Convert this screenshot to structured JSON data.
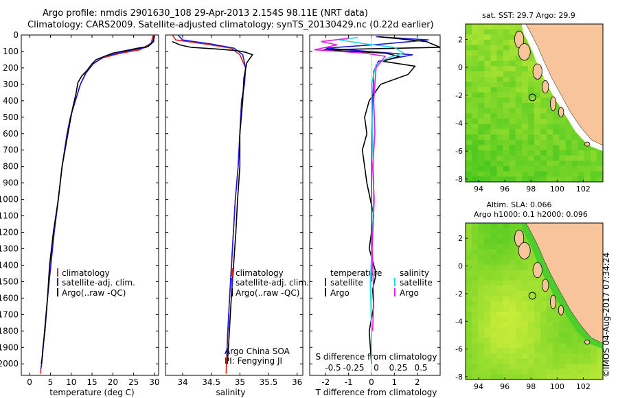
{
  "figure": {
    "title_line1": "Argo profile: nmdis 2901630_108 29-Apr-2013 2.154S 98.11E (NRT data)",
    "title_line2": "Climatology: CARS2009. Satellite-adjusted climatology: synTS_20130429.nc (0.22d earlier)",
    "credit": "©IMOS 04-Aug-2017 07:34:24",
    "colors": {
      "climatology": "#e8201c",
      "satellite": "#1a1adc",
      "argo": "#000000",
      "sat_salinity": "#22d8e8",
      "argo_salinity": "#e020e0",
      "land": "#f7c49b",
      "sea_green": "#39c21a",
      "sea_yellow": "#c8ec3a"
    }
  },
  "chart_data": [
    {
      "id": "temperature",
      "type": "line",
      "xlabel": "temperature (deg C)",
      "ylabel": "",
      "xlim": [
        -2,
        31
      ],
      "ylim": [
        2070,
        0
      ],
      "xticks": [
        0,
        5,
        10,
        15,
        20,
        25,
        30
      ],
      "yticks": [
        0,
        100,
        200,
        300,
        400,
        500,
        600,
        700,
        800,
        900,
        1000,
        1100,
        1200,
        1300,
        1400,
        1500,
        1600,
        1700,
        1800,
        1900,
        2000
      ],
      "legend": [
        "climatology",
        "satellite-adj. clim.",
        "Argo(..raw -QC)"
      ],
      "series": [
        {
          "name": "climatology",
          "color": "#e8201c",
          "x": [
            29.7,
            29.2,
            26.5,
            22,
            17.5,
            15,
            13.5,
            12.2,
            11,
            9.8,
            9,
            7.8,
            6.9,
            5.9,
            5.1,
            4.3,
            3.7,
            3.2,
            2.9,
            2.7,
            2.65
          ],
          "y": [
            0,
            50,
            90,
            110,
            140,
            180,
            230,
            300,
            400,
            500,
            600,
            800,
            1000,
            1200,
            1400,
            1600,
            1800,
            1900,
            2000,
            2030,
            2060
          ]
        },
        {
          "name": "satellite-adj. clim.",
          "color": "#1a1adc",
          "x": [
            29.9,
            29.6,
            28,
            23,
            18,
            15.3,
            13.6,
            12.2,
            11,
            9.8,
            9,
            7.8,
            6.9,
            5.9,
            5.1,
            4.3,
            3.7,
            3.2,
            2.9,
            2.7
          ],
          "y": [
            0,
            40,
            75,
            100,
            130,
            175,
            230,
            300,
            400,
            500,
            600,
            800,
            1000,
            1200,
            1400,
            1600,
            1800,
            1900,
            2000,
            2030
          ]
        },
        {
          "name": "Argo(..raw -QC)",
          "color": "#000000",
          "x": [
            29.9,
            29.8,
            28.5,
            26,
            24,
            20,
            18,
            16,
            15,
            13.8,
            12.5,
            11.6,
            11.2,
            10.3,
            9.2,
            7.8,
            6.9,
            5.7,
            4.8,
            4.3,
            3.6,
            3.1,
            2.8
          ],
          "y": [
            10,
            40,
            70,
            80,
            90,
            110,
            130,
            150,
            175,
            215,
            250,
            290,
            350,
            450,
            600,
            800,
            1000,
            1200,
            1400,
            1600,
            1800,
            1950,
            2000
          ]
        }
      ]
    },
    {
      "id": "salinity",
      "type": "line",
      "xlabel": "salinity",
      "ylabel": "",
      "xlim": [
        33.7,
        36.1
      ],
      "ylim": [
        2070,
        0
      ],
      "xticks": [
        34,
        34.5,
        35,
        35.5,
        36
      ],
      "legend": [
        "climatology",
        "satellite-adj. clim.",
        "Argo(..raw -QC)"
      ],
      "annotation_line1": "Argo China SOA",
      "annotation_line2": "PI: Fengying JI",
      "series": [
        {
          "name": "climatology",
          "color": "#e8201c",
          "x": [
            33.82,
            33.88,
            34.4,
            34.85,
            35.0,
            35.1,
            35.08,
            35.03,
            35.0,
            34.97,
            34.92,
            34.87,
            34.82,
            34.79,
            34.77,
            34.76
          ],
          "y": [
            0,
            30,
            55,
            80,
            120,
            200,
            300,
            400,
            600,
            800,
            1000,
            1300,
            1600,
            1800,
            1950,
            2060
          ]
        },
        {
          "name": "satellite-adj. clim.",
          "color": "#1a1adc",
          "x": [
            33.92,
            34.0,
            34.5,
            34.9,
            35.05,
            35.1,
            35.08,
            35.03,
            35.0,
            34.97,
            34.92,
            34.87,
            34.82,
            34.79,
            34.77
          ],
          "y": [
            0,
            30,
            55,
            80,
            120,
            200,
            300,
            400,
            600,
            800,
            1000,
            1300,
            1600,
            1800,
            1950
          ]
        },
        {
          "name": "Argo(..raw -QC)",
          "color": "#000000",
          "x": [
            33.82,
            33.95,
            34.15,
            34.6,
            34.95,
            35.1,
            35.22,
            35.12,
            35.07,
            35.05,
            35.0,
            35.0,
            34.96,
            34.93,
            34.85,
            34.8,
            34.78
          ],
          "y": [
            40,
            60,
            75,
            85,
            95,
            105,
            120,
            170,
            260,
            400,
            600,
            800,
            1000,
            1200,
            1600,
            1900,
            2000
          ]
        }
      ]
    },
    {
      "id": "differences",
      "type": "line",
      "xlabel": "T difference from climatology",
      "ylabel": "",
      "top_axis_label": "S difference from climatology",
      "xlim": [
        -2.7,
        3.0
      ],
      "ylim": [
        2070,
        0
      ],
      "xticks": [
        -2,
        -1,
        0,
        1,
        2
      ],
      "top_ticks": [
        "-0.5",
        "-0.25",
        "0",
        "0.25",
        "0.5"
      ],
      "legend_headers": [
        "temperature",
        "salinity"
      ],
      "legend": [
        "satellite",
        "Argo",
        "satellite",
        "Argo"
      ],
      "series": [
        {
          "name": "satellite",
          "color": "#1a1adc",
          "x": [
            0.2,
            2.5,
            0.5,
            -2.0,
            1.8,
            0.3,
            0.1,
            0.05,
            0,
            0
          ],
          "y": [
            10,
            30,
            55,
            80,
            120,
            160,
            220,
            400,
            800,
            1500
          ]
        },
        {
          "name": "Argo",
          "color": "#000000",
          "x": [
            0.3,
            2.4,
            3.0,
            -2.1,
            0.6,
            1.2,
            0.5,
            1.9,
            1.6,
            0.4,
            -0.1,
            -0.3,
            -0.2,
            -0.4,
            -0.2,
            0.1,
            -0.1,
            0.2,
            0.05,
            0.1,
            -0.1,
            0
          ],
          "y": [
            10,
            40,
            75,
            90,
            110,
            130,
            160,
            190,
            240,
            300,
            400,
            500,
            600,
            700,
            900,
            1100,
            1300,
            1450,
            1550,
            1650,
            1800,
            2000
          ]
        },
        {
          "name": "satellite",
          "color": "#22d8e8",
          "x": [
            -0.6,
            -1.4,
            -0.2,
            1.0,
            1.4,
            0.7,
            0.2,
            0,
            0.05,
            0.1,
            0.05,
            -0.05,
            0,
            0
          ],
          "y": [
            15,
            30,
            55,
            75,
            110,
            140,
            180,
            300,
            600,
            900,
            1200,
            1500,
            1800,
            2000
          ]
        },
        {
          "name": "Argo",
          "color": "#e020e0",
          "x": [
            -1.0,
            -2.2,
            -1.5,
            -2.5,
            -0.3,
            0.6,
            0.2,
            0.1,
            0.15,
            0.05,
            0.12,
            0.03,
            0.1,
            0.05
          ],
          "y": [
            20,
            40,
            60,
            90,
            110,
            130,
            200,
            400,
            600,
            800,
            1000,
            1300,
            1600,
            1800
          ]
        }
      ]
    },
    {
      "id": "sst_map",
      "type": "heatmap",
      "title": "sat. SST: 29.7  Argo: 29.9",
      "xticks": [
        94,
        96,
        98,
        100,
        102
      ],
      "yticks": [
        2,
        0,
        -2,
        -4,
        -6,
        -8
      ],
      "xlim": [
        93,
        103.5
      ],
      "ylim": [
        -8.2,
        3.1
      ],
      "marker": {
        "lon": 98.11,
        "lat": -2.154
      }
    },
    {
      "id": "sla_map",
      "type": "heatmap",
      "title_line1": "Altim. SLA: 0.066",
      "title_line2": "Argo h1000: 0.1  h2000: 0.096",
      "xticks": [
        94,
        96,
        98,
        100,
        102
      ],
      "yticks": [
        2,
        0,
        -2,
        -4,
        -6,
        -8
      ],
      "xlim": [
        93,
        103.5
      ],
      "ylim": [
        -8.2,
        3.1
      ],
      "marker": {
        "lon": 98.11,
        "lat": -2.154
      }
    }
  ]
}
